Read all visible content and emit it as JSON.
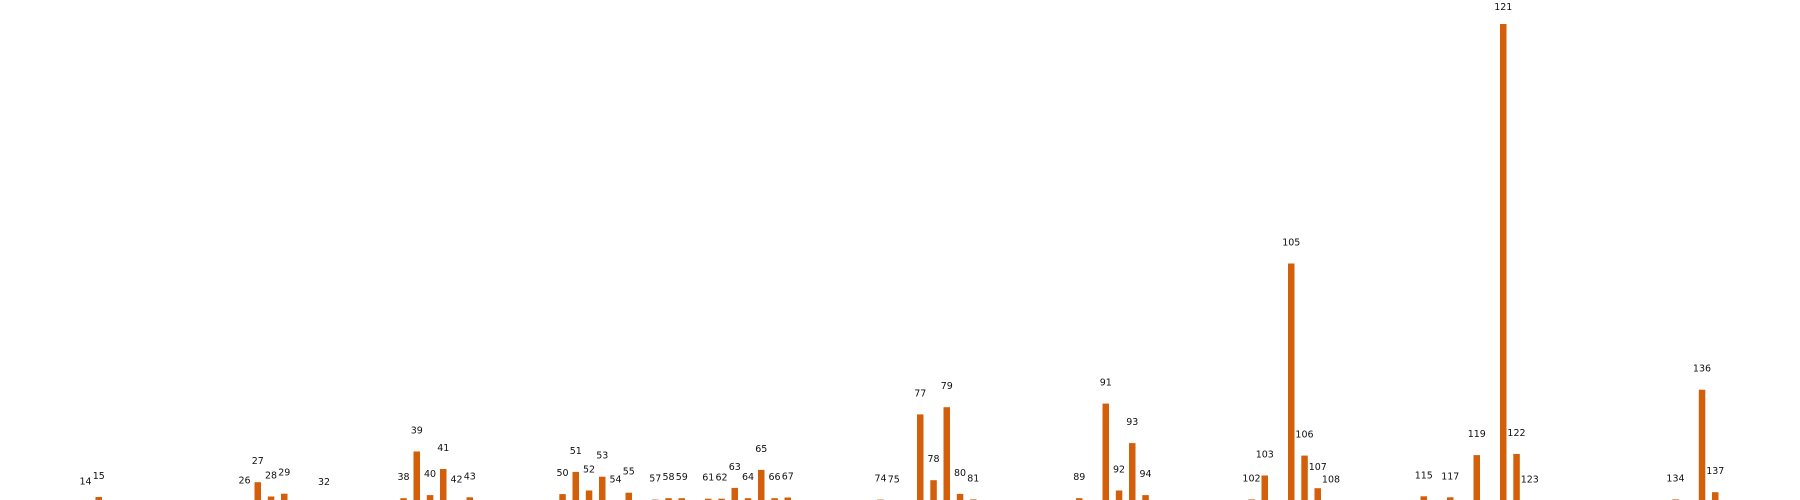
{
  "colors": {
    "bar": "#d35f0a",
    "label": "#111111",
    "background": "#ffffff"
  },
  "chart_data": {
    "type": "bar",
    "title": "",
    "xlabel": "",
    "ylabel": "",
    "grid": false,
    "legend": "none",
    "axes_visible": false,
    "ylim": [
      0,
      2000
    ],
    "categories": [
      "14",
      "15",
      "26",
      "27",
      "28",
      "29",
      "32",
      "38",
      "39",
      "40",
      "41",
      "42",
      "43",
      "50",
      "51",
      "52",
      "53",
      "54",
      "55",
      "57",
      "58",
      "59",
      "61",
      "62",
      "63",
      "64",
      "65",
      "66",
      "67",
      "74",
      "75",
      "77",
      "78",
      "79",
      "80",
      "81",
      "89",
      "91",
      "92",
      "93",
      "94",
      "102",
      "103",
      "105",
      "106",
      "107",
      "108",
      "115",
      "117",
      "119",
      "122",
      "121",
      "123",
      "134",
      "136",
      "137"
    ],
    "values": [
      2,
      25,
      7,
      87,
      27,
      39,
      0,
      20,
      215,
      33,
      142,
      10,
      24,
      37,
      130,
      52,
      110,
      11,
      43,
      14,
      20,
      20,
      18,
      18,
      63,
      20,
      138,
      20,
      23,
      14,
      10,
      370,
      95,
      400,
      38,
      15,
      20,
      415,
      52,
      250,
      33,
      15,
      115,
      1000,
      198,
      62,
      10,
      28,
      24,
      200,
      205,
      2000,
      10,
      15,
      473,
      45
    ]
  }
}
